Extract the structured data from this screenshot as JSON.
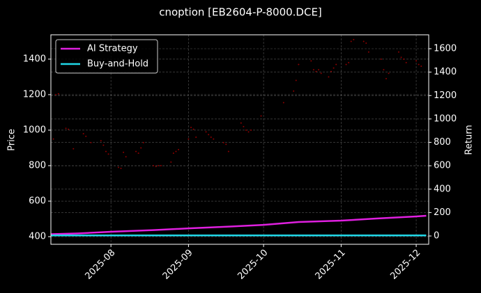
{
  "chart_data": {
    "type": "line",
    "title": "cnoption [EB2604-P-8000.DCE]",
    "ylabel": "Price",
    "y2label": "Return",
    "xlim": [
      189,
      340
    ],
    "ylim": [
      357,
      1537
    ],
    "y2lim": [
      -71,
      1719
    ],
    "xticks": [
      {
        "value": 213,
        "label": "2025-08"
      },
      {
        "value": 244,
        "label": "2025-09"
      },
      {
        "value": 274,
        "label": "2025-10"
      },
      {
        "value": 305,
        "label": "2025-11"
      },
      {
        "value": 335,
        "label": "2025-12"
      }
    ],
    "yticks": [
      400,
      600,
      800,
      1000,
      1200,
      1400
    ],
    "y2ticks": [
      0,
      200,
      400,
      600,
      800,
      1000,
      1200,
      1400,
      1600
    ],
    "grid": true,
    "legend": "upper left",
    "price": {
      "type": "scatter",
      "color": "#8b0000",
      "x": [
        190,
        191,
        192,
        195,
        196,
        198,
        202,
        203,
        205,
        209,
        210,
        211,
        212,
        216,
        217,
        218,
        219,
        223,
        224,
        225,
        226,
        230,
        231,
        232,
        233,
        237,
        238,
        239,
        240,
        244,
        245,
        246,
        247,
        251,
        252,
        253,
        254,
        258,
        259,
        260,
        265,
        266,
        267,
        268,
        269,
        273,
        282,
        286,
        287,
        288,
        293,
        294,
        295,
        296,
        297,
        300,
        301,
        302,
        303,
        307,
        308,
        309,
        310,
        314,
        315,
        316,
        321,
        322,
        323,
        324,
        328,
        329,
        330,
        331,
        335,
        336,
        337
      ],
      "values": [
        950,
        1200,
        1205,
        1010,
        1005,
        895,
        980,
        965,
        930,
        940,
        915,
        880,
        865,
        790,
        785,
        875,
        850,
        880,
        870,
        900,
        930,
        800,
        795,
        800,
        800,
        820,
        870,
        880,
        890,
        950,
        1015,
        1005,
        960,
        990,
        975,
        960,
        950,
        930,
        920,
        880,
        1040,
        1020,
        1000,
        990,
        1000,
        1080,
        1155,
        1220,
        1280,
        1370,
        1390,
        1340,
        1330,
        1340,
        1320,
        1300,
        1330,
        1350,
        1370,
        1370,
        1380,
        1500,
        1510,
        1500,
        1490,
        1440,
        1400,
        1340,
        1290,
        1320,
        1440,
        1410,
        1400,
        1380,
        1390,
        1370,
        1360
      ]
    },
    "series": [
      {
        "name": "AI Strategy",
        "color": "#e020e0",
        "axis": "y2",
        "x": [
          189,
          200,
          213,
          230,
          244,
          260,
          274,
          288,
          305,
          319,
          329,
          335,
          339
        ],
        "values": [
          15,
          22,
          36,
          50,
          65,
          80,
          95,
          119,
          131,
          149,
          160,
          167,
          173
        ]
      },
      {
        "name": "Buy-and-Hold",
        "color": "#20d8e8",
        "axis": "y2",
        "x": [
          189,
          339
        ],
        "values": [
          5,
          5
        ]
      }
    ]
  }
}
